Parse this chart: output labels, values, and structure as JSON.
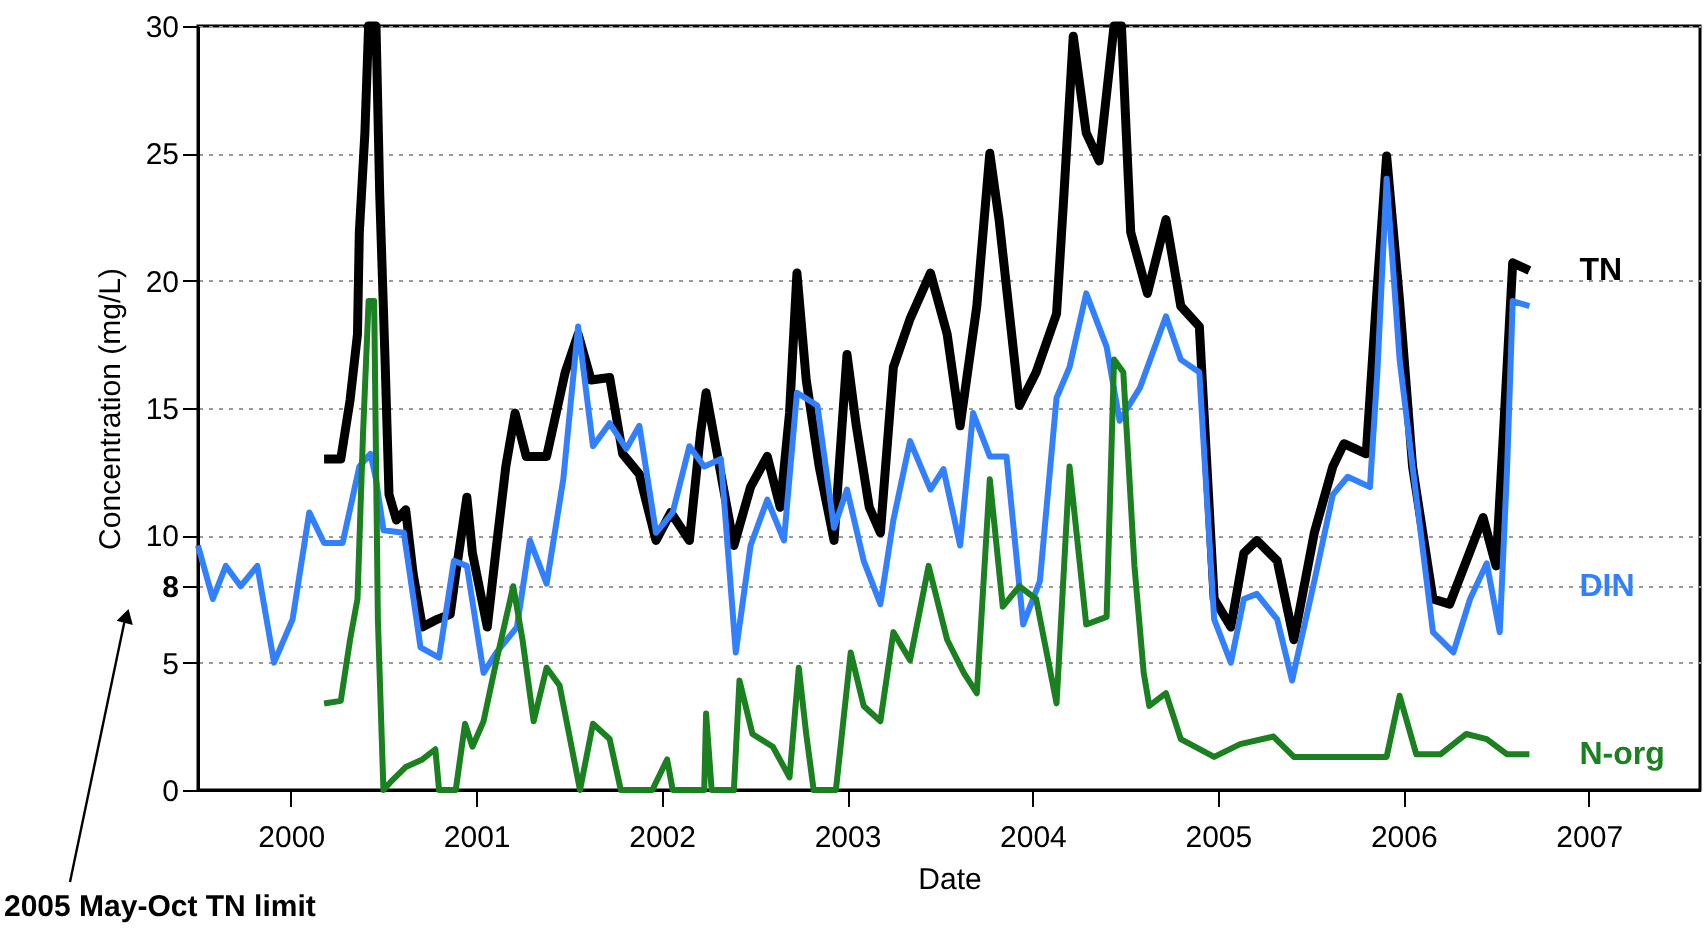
{
  "chart_data": {
    "type": "line",
    "xlabel": "Date",
    "ylabel": "Concentration (mg/L)",
    "xlim": [
      1999.5,
      2007.6
    ],
    "xticks": [
      {
        "value": 2000,
        "label": "2000"
      },
      {
        "value": 2001,
        "label": "2001"
      },
      {
        "value": 2002,
        "label": "2002"
      },
      {
        "value": 2003,
        "label": "2003"
      },
      {
        "value": 2004,
        "label": "2004"
      },
      {
        "value": 2005,
        "label": "2005"
      },
      {
        "value": 2006,
        "label": "2006"
      },
      {
        "value": 2007,
        "label": "2007"
      }
    ],
    "ylim": [
      0,
      30
    ],
    "yticks": [
      0,
      5,
      8,
      10,
      15,
      20,
      25,
      30
    ],
    "grid": "y",
    "legend": false,
    "marker": "none",
    "line_style": "solid",
    "annotations": [
      "2005 May-Oct TN limit"
    ],
    "series": [
      {
        "name": "TN",
        "color": "#000000",
        "x": [
          2000.18,
          2000.27,
          2000.32,
          2000.36,
          2000.37,
          2000.4,
          2000.42,
          2000.46,
          2000.48,
          2000.51,
          2000.53,
          2000.57,
          2000.62,
          2000.66,
          2000.71,
          2000.79,
          2000.86,
          2000.89,
          2000.95,
          2000.98,
          2001.06,
          2001.11,
          2001.16,
          2001.21,
          2001.27,
          2001.38,
          2001.48,
          2001.55,
          2001.62,
          2001.72,
          2001.79,
          2001.88,
          2001.97,
          2002.05,
          2002.15,
          2002.21,
          2002.24,
          2002.3,
          2002.39,
          2002.48,
          2002.57,
          2002.64,
          2002.69,
          2002.73,
          2002.78,
          2002.85,
          2002.93,
          2003.0,
          2003.05,
          2003.12,
          2003.18,
          2003.25,
          2003.34,
          2003.45,
          2003.54,
          2003.61,
          2003.7,
          2003.77,
          2003.82,
          2003.93,
          2004.02,
          2004.13,
          2004.17,
          2004.22,
          2004.29,
          2004.36,
          2004.44,
          2004.48,
          2004.53,
          2004.62,
          2004.72,
          2004.8,
          2004.9,
          2004.98,
          2005.07,
          2005.14,
          2005.21,
          2005.32,
          2005.41,
          2005.52,
          2005.62,
          2005.68,
          2005.8,
          2005.86,
          2005.91,
          2005.98,
          2006.05,
          2006.16,
          2006.25,
          2006.34,
          2006.43,
          2006.5,
          2006.54,
          2006.59,
          2006.68
        ],
        "values": [
          13.0,
          13.0,
          15.3,
          17.9,
          21.9,
          25.8,
          30,
          30,
          23.4,
          16.6,
          11.6,
          10.6,
          11.0,
          8.5,
          6.4,
          6.7,
          6.9,
          8.5,
          11.5,
          9.3,
          6.4,
          9.6,
          12.7,
          14.8,
          13.1,
          13.1,
          16.4,
          17.9,
          16.1,
          16.2,
          13.2,
          12.4,
          9.8,
          10.9,
          9.8,
          14.0,
          15.6,
          13.2,
          9.6,
          11.9,
          13.1,
          11.1,
          14.8,
          20.3,
          16.1,
          12.7,
          9.8,
          17.1,
          14.3,
          11.1,
          10.1,
          16.6,
          18.5,
          20.3,
          17.9,
          14.3,
          19.0,
          25.0,
          22.4,
          15.1,
          16.4,
          18.7,
          23.4,
          29.6,
          25.8,
          24.7,
          30,
          30,
          21.9,
          19.5,
          22.4,
          19.0,
          18.2,
          7.5,
          6.4,
          9.3,
          9.8,
          9.0,
          5.9,
          10.1,
          12.7,
          13.6,
          13.2,
          19.8,
          24.9,
          19.2,
          12.7,
          7.5,
          7.3,
          9.0,
          10.7,
          8.8,
          14.0,
          20.7,
          20.4
        ]
      },
      {
        "name": "DIN",
        "color": "#3380ff",
        "x": [
          1999.5,
          1999.58,
          1999.65,
          1999.73,
          1999.82,
          1999.91,
          2000.01,
          2000.1,
          2000.18,
          2000.28,
          2000.37,
          2000.43,
          2000.46,
          2000.5,
          2000.61,
          2000.7,
          2000.8,
          2000.88,
          2000.95,
          2001.04,
          2001.11,
          2001.22,
          2001.29,
          2001.38,
          2001.47,
          2001.55,
          2001.63,
          2001.72,
          2001.81,
          2001.88,
          2001.97,
          2002.06,
          2002.15,
          2002.23,
          2002.32,
          2002.4,
          2002.48,
          2002.57,
          2002.66,
          2002.73,
          2002.84,
          2002.93,
          2003.0,
          2003.09,
          2003.18,
          2003.25,
          2003.34,
          2003.45,
          2003.52,
          2003.61,
          2003.68,
          2003.77,
          2003.86,
          2003.95,
          2004.04,
          2004.13,
          2004.2,
          2004.29,
          2004.4,
          2004.47,
          2004.58,
          2004.72,
          2004.8,
          2004.9,
          2004.98,
          2005.07,
          2005.14,
          2005.21,
          2005.32,
          2005.4,
          2005.52,
          2005.62,
          2005.7,
          2005.82,
          2005.86,
          2005.91,
          2005.98,
          2006.05,
          2006.16,
          2006.27,
          2006.36,
          2006.45,
          2006.52,
          2006.56,
          2006.59,
          2006.68
        ],
        "values": [
          9.6,
          7.5,
          8.8,
          8.0,
          8.8,
          5.0,
          6.7,
          10.9,
          9.7,
          9.7,
          12.7,
          13.2,
          12.2,
          10.2,
          10.1,
          5.6,
          5.2,
          9.0,
          8.8,
          4.6,
          5.4,
          6.4,
          9.8,
          8.1,
          12.2,
          18.2,
          13.5,
          14.4,
          13.4,
          14.3,
          10.1,
          10.9,
          13.5,
          12.7,
          13.0,
          5.4,
          9.6,
          11.4,
          9.8,
          15.6,
          15.1,
          10.3,
          11.8,
          9.0,
          7.3,
          10.6,
          13.7,
          11.8,
          12.6,
          9.6,
          14.8,
          13.1,
          13.1,
          6.5,
          8.2,
          15.4,
          16.6,
          19.5,
          17.4,
          14.5,
          15.8,
          18.6,
          16.9,
          16.4,
          6.7,
          5.0,
          7.5,
          7.7,
          6.7,
          4.3,
          8.2,
          11.6,
          12.3,
          11.9,
          16.4,
          24.0,
          16.9,
          12.7,
          6.2,
          5.4,
          7.5,
          8.9,
          6.2,
          12.7,
          19.2,
          19.0
        ]
      },
      {
        "name": "N-org",
        "color": "#1a8020",
        "x": [
          2000.18,
          2000.27,
          2000.32,
          2000.36,
          2000.39,
          2000.42,
          2000.45,
          2000.47,
          2000.5,
          2000.55,
          2000.62,
          2000.71,
          2000.78,
          2000.8,
          2000.89,
          2000.94,
          2000.98,
          2001.04,
          2001.11,
          2001.2,
          2001.25,
          2001.31,
          2001.38,
          2001.45,
          2001.56,
          2001.63,
          2001.72,
          2001.78,
          2001.95,
          2002.03,
          2002.06,
          2002.23,
          2002.24,
          2002.27,
          2002.39,
          2002.42,
          2002.49,
          2002.6,
          2002.69,
          2002.74,
          2002.78,
          2002.82,
          2002.94,
          2003.02,
          2003.09,
          2003.18,
          2003.25,
          2003.34,
          2003.44,
          2003.54,
          2003.63,
          2003.7,
          2003.77,
          2003.84,
          2003.93,
          2004.02,
          2004.13,
          2004.2,
          2004.29,
          2004.4,
          2004.44,
          2004.49,
          2004.55,
          2004.6,
          2004.63,
          2004.72,
          2004.8,
          2004.98,
          2005.12,
          2005.3,
          2005.41,
          2005.91,
          2005.98,
          2006.07,
          2006.2,
          2006.34,
          2006.45,
          2006.56,
          2006.68
        ],
        "values": [
          3.4,
          3.5,
          5.9,
          7.5,
          14.0,
          19.2,
          19.2,
          6.7,
          0,
          0.4,
          0.9,
          1.2,
          1.6,
          0,
          0,
          2.6,
          1.7,
          2.7,
          5.1,
          8.0,
          5.9,
          2.7,
          4.8,
          4.1,
          0,
          2.6,
          2.0,
          0,
          0,
          1.2,
          0,
          0,
          3.0,
          0,
          0,
          4.3,
          2.2,
          1.7,
          0.5,
          4.8,
          2.2,
          0,
          0,
          5.4,
          3.3,
          2.7,
          6.2,
          5.1,
          8.8,
          5.9,
          4.6,
          3.8,
          12.2,
          7.2,
          8.0,
          7.5,
          3.4,
          12.7,
          6.5,
          6.8,
          16.9,
          16.4,
          8.8,
          4.6,
          3.3,
          3.8,
          2.0,
          1.3,
          1.8,
          2.1,
          1.3,
          1.3,
          3.7,
          1.4,
          1.4,
          2.2,
          2.0,
          1.4,
          1.4
        ]
      }
    ]
  }
}
